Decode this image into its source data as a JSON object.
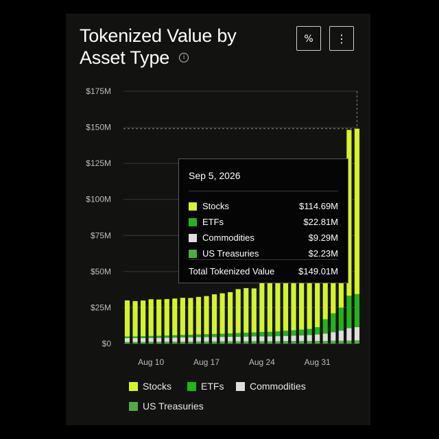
{
  "header": {
    "title": "Tokenized Value by Asset Type",
    "info_glyph": "i",
    "percent_label": "%",
    "menu_label": "⋮"
  },
  "colors": {
    "stocks": "#d6f51f",
    "etfs": "#22b418",
    "commodities": "#dedede",
    "treasuries": "#4cae3f",
    "grid": "#3a3a36",
    "axis_text": "#bdbdbd"
  },
  "tooltip": {
    "date": "Sep 5, 2026",
    "rows": [
      {
        "label": "Stocks",
        "value": "$114.69M"
      },
      {
        "label": "ETFs",
        "value": "$22.81M"
      },
      {
        "label": "Commodities",
        "value": "$9.29M"
      },
      {
        "label": "US Treasuries",
        "value": "$2.23M"
      }
    ],
    "total_label": "Total Tokenized Value",
    "total_value": "$149.01M"
  },
  "chart_data": {
    "type": "bar",
    "stacked": true,
    "title": "Tokenized Value by Asset Type",
    "ylim": [
      0,
      175
    ],
    "y_ticks": [
      0,
      25,
      50,
      75,
      100,
      125,
      150,
      175
    ],
    "y_tick_labels": [
      "$0",
      "$25M",
      "$50M",
      "$75M",
      "$100M",
      "$125M",
      "$150M",
      "$175M"
    ],
    "x_tick_labels": [
      {
        "label": "Aug 10",
        "index": 3
      },
      {
        "label": "Aug 17",
        "index": 10
      },
      {
        "label": "Aug 24",
        "index": 17
      },
      {
        "label": "Aug 31",
        "index": 24
      }
    ],
    "legend_position": "bottom",
    "grid": true,
    "categories": [
      "Aug 7",
      "Aug 8",
      "Aug 9",
      "Aug 10",
      "Aug 11",
      "Aug 12",
      "Aug 13",
      "Aug 14",
      "Aug 15",
      "Aug 16",
      "Aug 17",
      "Aug 18",
      "Aug 19",
      "Aug 20",
      "Aug 21",
      "Aug 22",
      "Aug 23",
      "Aug 24",
      "Aug 25",
      "Aug 26",
      "Aug 27",
      "Aug 28",
      "Aug 29",
      "Aug 30",
      "Aug 31",
      "Sep 1",
      "Sep 2",
      "Sep 3",
      "Sep 4",
      "Sep 5"
    ],
    "series": [
      {
        "name": "US Treasuries",
        "values": [
          1.2,
          1.2,
          1.2,
          1.3,
          1.3,
          1.3,
          1.4,
          1.4,
          1.4,
          1.5,
          1.5,
          1.5,
          1.6,
          1.6,
          1.6,
          1.6,
          1.7,
          1.7,
          1.7,
          1.7,
          1.8,
          1.8,
          1.8,
          1.8,
          1.9,
          1.9,
          2.0,
          2.0,
          2.1,
          2.23
        ]
      },
      {
        "name": "Commodities",
        "values": [
          2.6,
          2.6,
          2.6,
          2.7,
          2.7,
          2.8,
          2.8,
          2.9,
          2.9,
          3.0,
          3.0,
          3.1,
          3.1,
          3.2,
          3.2,
          3.3,
          3.3,
          3.4,
          3.4,
          3.5,
          3.6,
          3.8,
          4.0,
          4.2,
          4.5,
          5.0,
          6.0,
          7.0,
          8.6,
          9.29
        ]
      },
      {
        "name": "ETFs",
        "values": [
          1.2,
          1.2,
          1.3,
          1.3,
          1.4,
          1.5,
          1.6,
          1.7,
          1.8,
          1.9,
          2.0,
          2.1,
          2.2,
          2.3,
          2.5,
          2.6,
          2.8,
          3.0,
          3.1,
          3.3,
          3.5,
          3.7,
          3.9,
          4.2,
          5.0,
          10.0,
          13.0,
          16.0,
          22.5,
          22.81
        ]
      },
      {
        "name": "Stocks",
        "values": [
          25.0,
          24.5,
          24.8,
          25.5,
          25.2,
          25.3,
          25.5,
          25.8,
          25.6,
          26.0,
          26.5,
          27.5,
          28.0,
          28.6,
          30.5,
          31.0,
          30.5,
          36.0,
          37.0,
          36.5,
          38.0,
          39.5,
          40.2,
          41.0,
          44.0,
          52.0,
          53.0,
          56.0,
          115.0,
          114.69
        ]
      }
    ]
  },
  "legend": [
    {
      "label": "Stocks",
      "color": "#d6f51f"
    },
    {
      "label": "ETFs",
      "color": "#22b418"
    },
    {
      "label": "Commodities",
      "color": "#dedede"
    },
    {
      "label": "US Treasuries",
      "color": "#4cae3f"
    }
  ]
}
